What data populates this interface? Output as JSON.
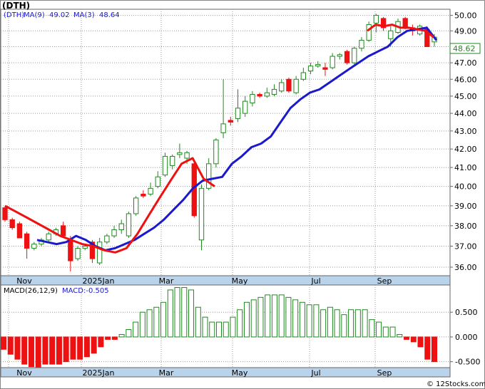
{
  "ticker_label": "(DTH)",
  "price_panel": {
    "ma9_label": "MA(9)",
    "ma9_value": "49.02",
    "ma3_label": "MA(3)",
    "ma3_value": "48.64",
    "last_price": "48.62",
    "y_ticks": [
      "50.00",
      "49.00",
      "48.00",
      "47.00",
      "46.00",
      "45.00",
      "44.00",
      "43.00",
      "42.00",
      "41.00",
      "40.00",
      "39.00",
      "38.00",
      "37.00",
      "36.00"
    ]
  },
  "macd_panel": {
    "label": "MACD(26,12,9)",
    "value_label": "MACD:-0.505",
    "y_ticks": [
      "0.500",
      "0.000",
      "-0.500"
    ]
  },
  "x_axis_labels": [
    "Nov",
    "2025Jan",
    "Mar",
    "May",
    "Jul",
    "Sep"
  ],
  "watermark": "© 12Stocks.com",
  "colors": {
    "up_candle": "#228822",
    "down_candle": "#ee1111",
    "ma_blue": "#1a1acc",
    "ma_red": "#ee1111",
    "macd_positive": "#228822",
    "macd_negative": "#ee1111",
    "axis_band": "#b9d3ea",
    "last_price_text": "#228822"
  },
  "chart_data": [
    {
      "type": "candlestick",
      "title": "(DTH)",
      "x_tick_labels": [
        "Nov",
        "2025Jan",
        "Mar",
        "May",
        "Jul",
        "Sep"
      ],
      "ylim": [
        35.6,
        50.4
      ],
      "y_scale": "log",
      "grid": true,
      "candles": [
        {
          "o": 38.9,
          "h": 39.0,
          "l": 38.2,
          "c": 38.3,
          "up": false
        },
        {
          "o": 38.3,
          "h": 38.4,
          "l": 37.8,
          "c": 37.9,
          "up": false
        },
        {
          "o": 38.1,
          "h": 38.2,
          "l": 37.4,
          "c": 37.4,
          "up": false
        },
        {
          "o": 37.6,
          "h": 37.7,
          "l": 36.4,
          "c": 36.9,
          "up": false
        },
        {
          "o": 36.9,
          "h": 37.2,
          "l": 36.8,
          "c": 37.1,
          "up": true
        },
        {
          "o": 37.1,
          "h": 37.4,
          "l": 37.0,
          "c": 37.3,
          "up": true
        },
        {
          "o": 37.3,
          "h": 37.7,
          "l": 37.2,
          "c": 37.6,
          "up": true
        },
        {
          "o": 37.6,
          "h": 37.9,
          "l": 37.5,
          "c": 37.8,
          "up": true
        },
        {
          "o": 38.0,
          "h": 38.2,
          "l": 37.4,
          "c": 37.5,
          "up": false
        },
        {
          "o": 37.3,
          "h": 37.5,
          "l": 35.8,
          "c": 36.3,
          "up": false
        },
        {
          "o": 36.4,
          "h": 37.0,
          "l": 36.3,
          "c": 36.9,
          "up": true
        },
        {
          "o": 36.9,
          "h": 37.1,
          "l": 36.8,
          "c": 37.0,
          "up": true
        },
        {
          "o": 37.2,
          "h": 37.3,
          "l": 36.2,
          "c": 36.4,
          "up": false
        },
        {
          "o": 36.2,
          "h": 37.4,
          "l": 36.1,
          "c": 37.2,
          "up": true
        },
        {
          "o": 37.2,
          "h": 37.6,
          "l": 37.1,
          "c": 37.5,
          "up": true
        },
        {
          "o": 37.5,
          "h": 38.0,
          "l": 37.4,
          "c": 37.8,
          "up": true
        },
        {
          "o": 37.8,
          "h": 38.3,
          "l": 37.6,
          "c": 38.1,
          "up": true
        },
        {
          "o": 37.5,
          "h": 38.7,
          "l": 37.4,
          "c": 38.6,
          "up": true
        },
        {
          "o": 38.6,
          "h": 39.5,
          "l": 38.5,
          "c": 39.4,
          "up": true
        },
        {
          "o": 39.6,
          "h": 39.8,
          "l": 39.4,
          "c": 39.5,
          "up": false
        },
        {
          "o": 39.6,
          "h": 40.2,
          "l": 39.5,
          "c": 39.9,
          "up": true
        },
        {
          "o": 40.0,
          "h": 40.8,
          "l": 39.9,
          "c": 40.5,
          "up": true
        },
        {
          "o": 40.6,
          "h": 41.8,
          "l": 40.5,
          "c": 41.6,
          "up": true
        },
        {
          "o": 41.1,
          "h": 41.7,
          "l": 40.9,
          "c": 41.6,
          "up": true
        },
        {
          "o": 41.7,
          "h": 42.3,
          "l": 41.5,
          "c": 41.8,
          "up": true
        },
        {
          "o": 41.8,
          "h": 41.9,
          "l": 41.2,
          "c": 41.5,
          "up": true
        },
        {
          "o": 41.2,
          "h": 41.3,
          "l": 38.4,
          "c": 38.5,
          "up": false
        },
        {
          "o": 37.3,
          "h": 40.1,
          "l": 36.8,
          "c": 39.9,
          "up": true
        },
        {
          "o": 39.9,
          "h": 41.5,
          "l": 39.8,
          "c": 41.2,
          "up": true
        },
        {
          "o": 41.2,
          "h": 42.6,
          "l": 41.0,
          "c": 42.5,
          "up": true
        },
        {
          "o": 42.9,
          "h": 46.0,
          "l": 42.6,
          "c": 43.4,
          "up": true
        },
        {
          "o": 43.5,
          "h": 43.8,
          "l": 43.3,
          "c": 43.6,
          "up": false
        },
        {
          "o": 43.7,
          "h": 45.4,
          "l": 43.5,
          "c": 44.3,
          "up": true
        },
        {
          "o": 44.0,
          "h": 45.0,
          "l": 43.8,
          "c": 44.7,
          "up": true
        },
        {
          "o": 44.6,
          "h": 45.3,
          "l": 44.4,
          "c": 45.1,
          "up": true
        },
        {
          "o": 45.1,
          "h": 45.2,
          "l": 44.9,
          "c": 45.0,
          "up": false
        },
        {
          "o": 45.0,
          "h": 45.5,
          "l": 44.9,
          "c": 45.2,
          "up": true
        },
        {
          "o": 45.1,
          "h": 45.7,
          "l": 45.0,
          "c": 45.4,
          "up": true
        },
        {
          "o": 45.3,
          "h": 46.0,
          "l": 45.2,
          "c": 45.8,
          "up": true
        },
        {
          "o": 46.0,
          "h": 46.1,
          "l": 45.2,
          "c": 45.3,
          "up": false
        },
        {
          "o": 45.2,
          "h": 46.2,
          "l": 45.1,
          "c": 46.0,
          "up": true
        },
        {
          "o": 46.0,
          "h": 46.7,
          "l": 45.9,
          "c": 46.4,
          "up": true
        },
        {
          "o": 46.5,
          "h": 47.0,
          "l": 46.3,
          "c": 46.8,
          "up": true
        },
        {
          "o": 46.8,
          "h": 47.1,
          "l": 46.7,
          "c": 46.9,
          "up": true
        },
        {
          "o": 46.7,
          "h": 47.0,
          "l": 46.2,
          "c": 46.6,
          "up": false
        },
        {
          "o": 46.7,
          "h": 47.6,
          "l": 46.6,
          "c": 47.4,
          "up": true
        },
        {
          "o": 47.4,
          "h": 47.6,
          "l": 47.2,
          "c": 47.5,
          "up": true
        },
        {
          "o": 47.7,
          "h": 47.8,
          "l": 46.9,
          "c": 47.0,
          "up": false
        },
        {
          "o": 47.0,
          "h": 48.0,
          "l": 46.9,
          "c": 47.9,
          "up": true
        },
        {
          "o": 47.9,
          "h": 48.6,
          "l": 47.7,
          "c": 48.4,
          "up": true
        },
        {
          "o": 48.4,
          "h": 49.6,
          "l": 48.3,
          "c": 49.4,
          "up": true
        },
        {
          "o": 49.5,
          "h": 50.1,
          "l": 48.9,
          "c": 50.0,
          "up": true
        },
        {
          "o": 49.8,
          "h": 49.9,
          "l": 49.0,
          "c": 49.2,
          "up": false
        },
        {
          "o": 49.0,
          "h": 49.3,
          "l": 48.0,
          "c": 48.5,
          "up": true
        },
        {
          "o": 48.9,
          "h": 49.8,
          "l": 48.8,
          "c": 49.6,
          "up": true
        },
        {
          "o": 49.8,
          "h": 49.9,
          "l": 49.1,
          "c": 49.2,
          "up": false
        },
        {
          "o": 49.2,
          "h": 49.4,
          "l": 48.7,
          "c": 49.0,
          "up": false
        },
        {
          "o": 48.8,
          "h": 49.4,
          "l": 48.7,
          "c": 49.3,
          "up": true
        },
        {
          "o": 49.1,
          "h": 49.3,
          "l": 48.0,
          "c": 48.0,
          "up": false
        },
        {
          "o": 48.3,
          "h": 48.8,
          "l": 48.0,
          "c": 48.6,
          "up": true
        }
      ],
      "ma_blue": [
        37.3,
        37.2,
        37.1,
        37.2,
        37.5,
        37.3,
        37.0,
        36.8,
        36.9,
        37.1,
        37.3,
        37.6,
        37.9,
        38.3,
        38.8,
        39.3,
        39.9,
        40.3,
        40.4,
        40.5,
        41.2,
        41.6,
        42.1,
        42.3,
        42.7,
        43.5,
        44.3,
        44.8,
        45.2,
        45.4,
        45.8,
        46.2,
        46.6,
        47.0,
        47.4,
        47.7,
        48.0,
        48.6,
        49.0,
        49.1,
        49.2,
        48.4
      ],
      "ma_red": [
        39.0,
        38.7,
        38.4,
        38.1,
        37.8,
        37.5,
        37.3,
        37.1,
        37.0,
        36.8,
        36.7,
        36.9,
        37.6,
        38.5,
        39.4,
        40.3,
        41.2,
        41.5,
        40.4,
        40.0,
        49.0,
        49.4,
        49.3,
        49.4,
        49.2,
        49.2,
        49.1,
        49.0,
        48.6
      ],
      "series": [
        {
          "name": "MA(9)",
          "last": 49.02
        },
        {
          "name": "MA(3)",
          "last": 48.64
        }
      ]
    },
    {
      "type": "bar",
      "title": "MACD(26,12,9)",
      "ylim": [
        -0.62,
        1.05
      ],
      "values": [
        -0.25,
        -0.35,
        -0.45,
        -0.55,
        -0.6,
        -0.62,
        -0.55,
        -0.55,
        -0.55,
        -0.5,
        -0.45,
        -0.45,
        -0.4,
        -0.33,
        -0.2,
        -0.05,
        -0.05,
        0.05,
        0.15,
        0.3,
        0.5,
        0.55,
        0.6,
        0.7,
        0.95,
        1.0,
        1.0,
        0.95,
        0.6,
        0.4,
        0.3,
        0.3,
        0.3,
        0.4,
        0.55,
        0.7,
        0.75,
        0.8,
        0.85,
        0.85,
        0.85,
        0.8,
        0.75,
        0.7,
        0.65,
        0.65,
        0.55,
        0.6,
        0.55,
        0.45,
        0.55,
        0.55,
        0.55,
        0.35,
        0.3,
        0.2,
        0.2,
        0.05,
        -0.05,
        -0.1,
        -0.2,
        -0.45,
        -0.5
      ]
    }
  ]
}
